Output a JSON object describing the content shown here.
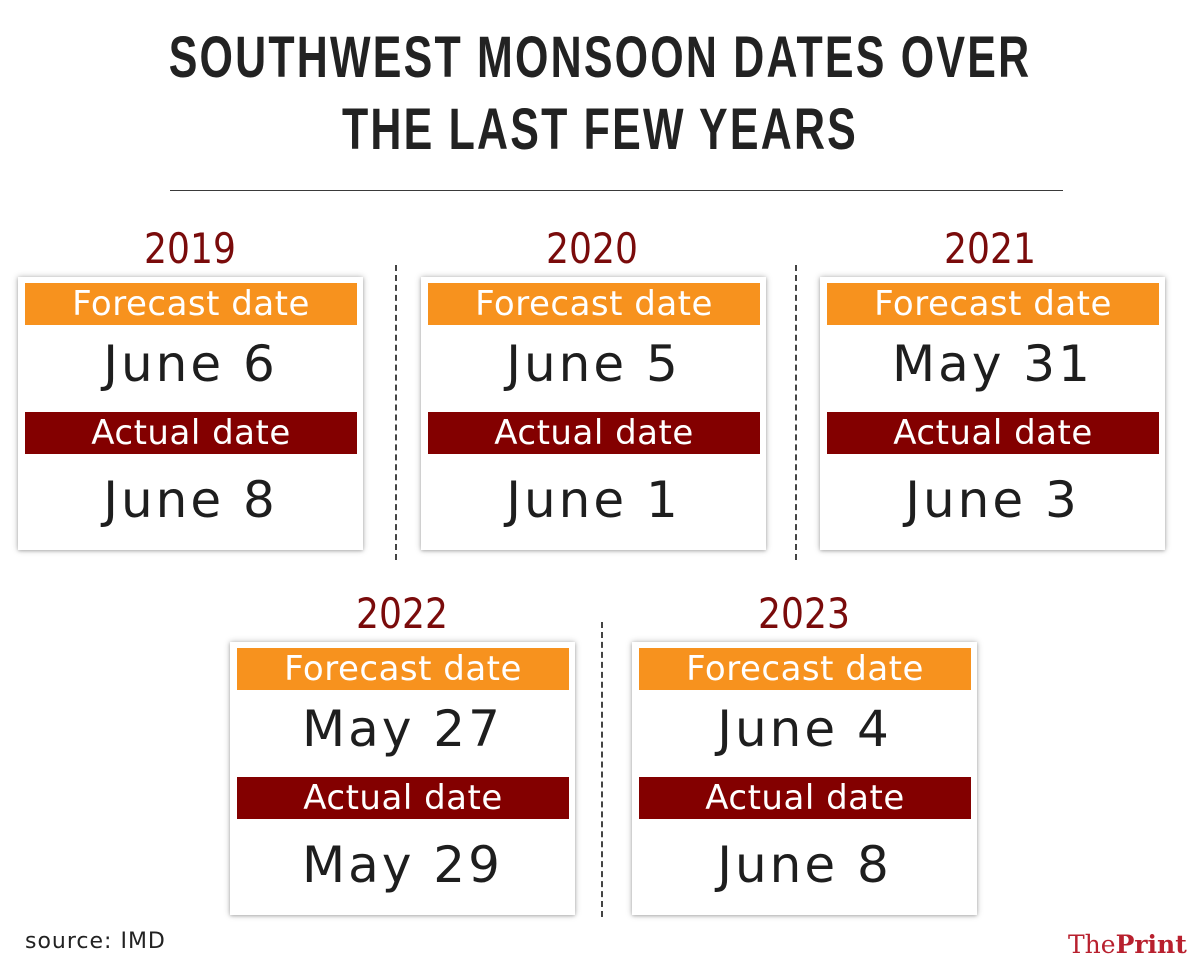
{
  "title": {
    "line1": "SOUTHWEST MONSOON DATES OVER",
    "line2": "THE LAST FEW YEARS"
  },
  "labels": {
    "forecast": "Forecast date",
    "actual": "Actual date"
  },
  "years": [
    {
      "year": "2019",
      "forecast": "June 6",
      "actual": "June 8"
    },
    {
      "year": "2020",
      "forecast": "June 5",
      "actual": "June 1"
    },
    {
      "year": "2021",
      "forecast": "May 31",
      "actual": "June 3"
    },
    {
      "year": "2022",
      "forecast": "May 27",
      "actual": "May 29"
    },
    {
      "year": "2023",
      "forecast": "June 4",
      "actual": "June 8"
    }
  ],
  "source": "source: IMD",
  "logo": {
    "prefix": "The",
    "name": "Print"
  },
  "colors": {
    "forecast_band": "#f7921e",
    "actual_band": "#830000",
    "year_text": "#7a0b0b",
    "logo": "#b8202e"
  }
}
